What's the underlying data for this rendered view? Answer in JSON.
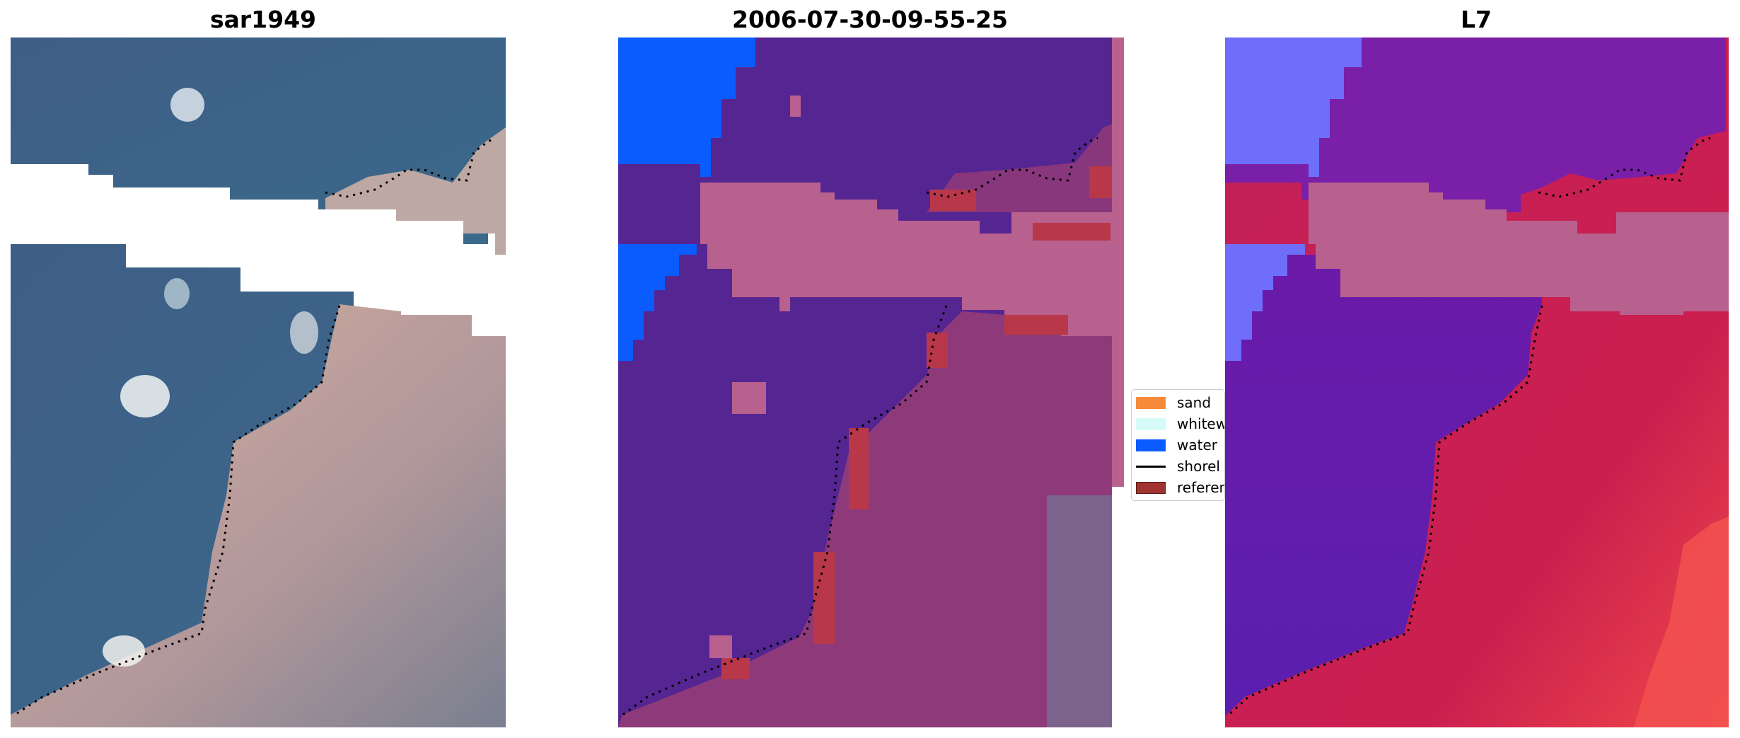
{
  "panels": [
    {
      "title": "sar1949"
    },
    {
      "title": "2006-07-30-09-55-25"
    },
    {
      "title": "L7"
    }
  ],
  "legend": {
    "items": [
      {
        "label": "sand",
        "kind": "patch",
        "color": "#f58b3a"
      },
      {
        "label": "whitew",
        "kind": "patch",
        "color": "#d4fbf6"
      },
      {
        "label": "water",
        "kind": "patch",
        "color": "#0a5cff"
      },
      {
        "label": "shorel",
        "kind": "line",
        "color": "#000000"
      },
      {
        "label": "referen",
        "kind": "patch",
        "color": "#a0332f"
      }
    ]
  },
  "colors": {
    "classified_water": "#0a5cff",
    "classified_land": "#552592",
    "classified_sand": "#b8618e",
    "classified_reference": "#b8384a",
    "mndwi_water": "#6e6efa",
    "mndwi_land": "#cc1f55"
  }
}
